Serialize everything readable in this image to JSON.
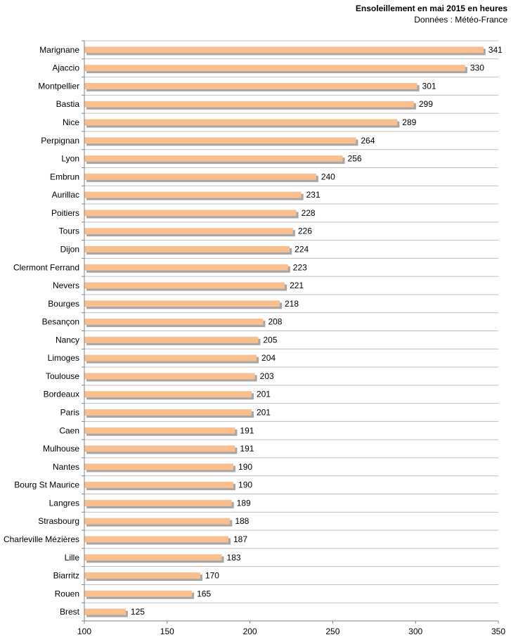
{
  "chart_data": {
    "type": "bar",
    "orientation": "horizontal",
    "title": "Ensoleillement  en mai 2015 en heures",
    "subtitle": "Données : Météo-France",
    "categories": [
      "Marignane",
      "Ajaccio",
      "Montpellier",
      "Bastia",
      "Nice",
      "Perpignan",
      "Lyon",
      "Embrun",
      "Aurillac",
      "Poitiers",
      "Tours",
      "Dijon",
      "Clermont Ferrand",
      "Nevers",
      "Bourges",
      "Besançon",
      "Nancy",
      "Limoges",
      "Toulouse",
      "Bordeaux",
      "Paris",
      "Caen",
      "Mulhouse",
      "Nantes",
      "Bourg St Maurice",
      "Langres",
      "Strasbourg",
      "Charleville Mézières",
      "Lille",
      "Biarritz",
      "Rouen",
      "Brest"
    ],
    "values": [
      341,
      330,
      301,
      299,
      289,
      264,
      256,
      240,
      231,
      228,
      226,
      224,
      223,
      221,
      218,
      208,
      205,
      204,
      203,
      201,
      201,
      191,
      191,
      190,
      190,
      189,
      188,
      187,
      183,
      170,
      165,
      125
    ],
    "xlim": [
      100,
      350
    ],
    "xticks": [
      "100",
      "150",
      "200",
      "250",
      "300",
      "350"
    ],
    "grid": true,
    "bar_color": "#fabf8f",
    "bar_shadow_color": "#a6a6a6",
    "gridline_color": "#bfbfbf",
    "axis_color": "#808080"
  }
}
